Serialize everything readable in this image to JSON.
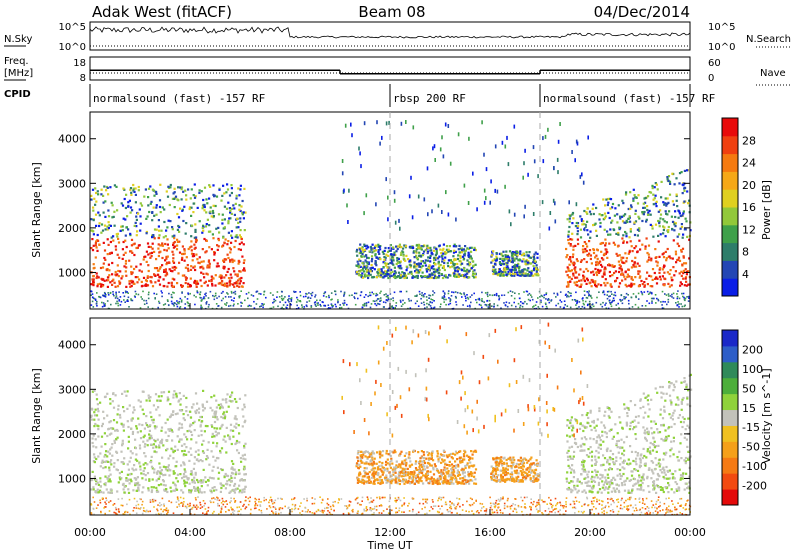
{
  "header": {
    "radar": "Adak West (fitACF)",
    "beam": "Beam 08",
    "date": "04/Dec/2014"
  },
  "top_panels": {
    "nsky_label": "N.Sky",
    "nsearch_label": "N.Search",
    "count_ticks": [
      "10^5",
      "10^0"
    ],
    "freq_label_line1": "Freq.",
    "freq_label_line2": "[MHz]",
    "freq_ticks": [
      "18",
      "8"
    ],
    "nave_label": "Nave",
    "nave_ticks": [
      "60",
      "0"
    ],
    "cpid_label": "CPID",
    "cpid_segments": [
      {
        "label": "normalsound (fast) -157 RF",
        "start_hour": 0,
        "end_hour": 12
      },
      {
        "label": "rbsp 200 RF",
        "start_hour": 12,
        "end_hour": 18
      },
      {
        "label": "normalsound (fast) -157 RF",
        "start_hour": 18,
        "end_hour": 24
      }
    ],
    "freq_segments": [
      {
        "start_hour": 0,
        "end_hour": 10,
        "mhz": 13.2
      },
      {
        "start_hour": 10,
        "end_hour": 18,
        "mhz": 10.8
      },
      {
        "start_hour": 18,
        "end_hour": 24,
        "mhz": 13.2
      }
    ]
  },
  "axes": {
    "ylabel": "Slant Range [km]",
    "xlabel": "Time UT",
    "x_ticks": [
      "00:00",
      "04:00",
      "08:00",
      "12:00",
      "16:00",
      "20:00",
      "00:00"
    ],
    "y_ticks": [
      "1000",
      "2000",
      "3000",
      "4000"
    ],
    "xlim_hours": [
      0,
      24
    ],
    "ylim_km": [
      180,
      4600
    ],
    "mode_change_hours": [
      12,
      18
    ]
  },
  "colorbars": {
    "power": {
      "label": "Power [dB]",
      "ticks": [
        "4",
        "8",
        "12",
        "16",
        "20",
        "24",
        "28"
      ],
      "colors": [
        "#0a1ee6",
        "#2346b4",
        "#2e7d6a",
        "#3fa04a",
        "#92c83a",
        "#e0d020",
        "#f5a818",
        "#f57a10",
        "#f04010",
        "#e80a0a"
      ]
    },
    "velocity": {
      "label": "Velocity [m s^-1]",
      "ticks": [
        "200",
        "100",
        "50",
        "15",
        "-15",
        "-50",
        "-100",
        "-200"
      ],
      "colors": [
        "#1a28c8",
        "#2e5ec8",
        "#2f8a5a",
        "#4cae3a",
        "#8fd23a",
        "#c2c2ba",
        "#f0c020",
        "#f5a01a",
        "#f57a14",
        "#f24a10",
        "#e40a0a"
      ]
    }
  },
  "chart_data": [
    {
      "type": "heatmap",
      "title": "Power",
      "xlabel": "Time UT",
      "ylabel": "Slant Range [km]",
      "xlim": [
        0,
        24
      ],
      "ylim": [
        180,
        4600
      ],
      "zlabel": "Power [dB]",
      "zlim": [
        0,
        30
      ],
      "regions": [
        {
          "t0": 0.0,
          "t1": 6.2,
          "r0": 700,
          "r1": 3000,
          "peak_db": 28
        },
        {
          "t0": 10.6,
          "t1": 15.4,
          "r0": 900,
          "r1": 1650,
          "peak_db": 14
        },
        {
          "t0": 16.0,
          "t1": 17.9,
          "r0": 950,
          "r1": 1500,
          "peak_db": 14
        },
        {
          "t0": 19.0,
          "t1": 24.0,
          "r0": 700,
          "r1": 3400,
          "peak_db": 28
        }
      ]
    },
    {
      "type": "heatmap",
      "title": "Velocity",
      "xlabel": "Time UT",
      "ylabel": "Slant Range [km]",
      "xlim": [
        0,
        24
      ],
      "ylim": [
        180,
        4600
      ],
      "zlabel": "Velocity [m s^-1]",
      "zlim": [
        -200,
        200
      ],
      "regions": [
        {
          "t0": 0.0,
          "t1": 6.2,
          "r0": 700,
          "r1": 3000,
          "velocity": 0
        },
        {
          "t0": 10.6,
          "t1": 15.4,
          "r0": 900,
          "r1": 1650,
          "velocity": -50
        },
        {
          "t0": 16.0,
          "t1": 17.9,
          "r0": 950,
          "r1": 1500,
          "velocity": -50
        },
        {
          "t0": 19.0,
          "t1": 24.0,
          "r0": 700,
          "r1": 3400,
          "velocity": 0
        }
      ]
    }
  ]
}
